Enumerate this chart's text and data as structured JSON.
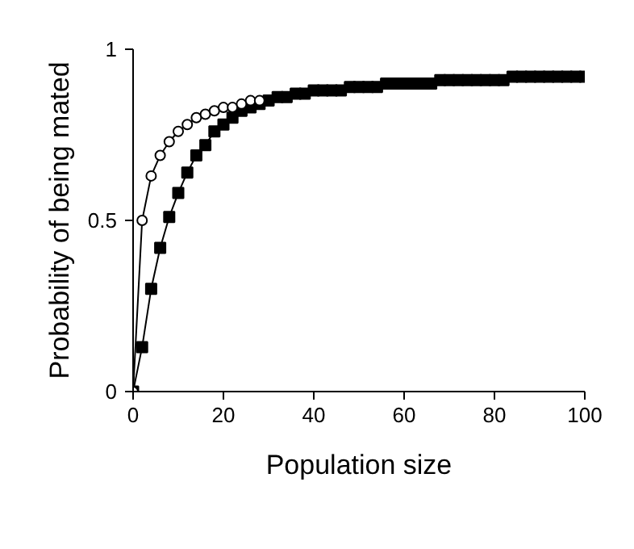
{
  "chart_data": {
    "type": "line",
    "xlabel": "Population size",
    "ylabel": "Probability of being mated",
    "xlim": [
      0,
      100
    ],
    "xticks": [
      0,
      20,
      40,
      60,
      80,
      100
    ],
    "ylim": [
      0,
      1
    ],
    "yticks": [
      0,
      0.5,
      1
    ],
    "grid": false,
    "series": [
      {
        "color": "#000000",
        "marker": "square",
        "x": [
          0,
          2,
          4,
          6,
          8,
          10,
          12,
          14,
          16,
          18,
          20,
          22,
          24,
          26,
          28,
          30,
          32,
          34,
          36,
          38,
          40,
          42,
          44,
          46,
          48,
          50,
          52,
          54,
          56,
          58,
          60,
          62,
          64,
          66,
          68,
          70,
          72,
          74,
          76,
          78,
          80,
          82,
          84,
          86,
          88,
          90,
          92,
          94,
          96,
          98,
          100
        ],
        "values": [
          0,
          0.13,
          0.3,
          0.42,
          0.51,
          0.58,
          0.64,
          0.69,
          0.72,
          0.76,
          0.78,
          0.8,
          0.82,
          0.83,
          0.84,
          0.85,
          0.86,
          0.86,
          0.87,
          0.87,
          0.88,
          0.88,
          0.88,
          0.88,
          0.89,
          0.89,
          0.89,
          0.89,
          0.9,
          0.9,
          0.9,
          0.9,
          0.9,
          0.9,
          0.91,
          0.91,
          0.91,
          0.91,
          0.91,
          0.91,
          0.91,
          0.91,
          0.92,
          0.92,
          0.92,
          0.92,
          0.92,
          0.92,
          0.92,
          0.92,
          0.92
        ]
      },
      {
        "color": "#000000",
        "marker": "circle",
        "x": [
          0,
          2,
          4,
          6,
          8,
          10,
          12,
          14,
          16,
          18,
          20,
          22,
          24,
          26,
          28
        ],
        "values": [
          0,
          0.5,
          0.63,
          0.69,
          0.73,
          0.76,
          0.78,
          0.8,
          0.81,
          0.82,
          0.83,
          0.83,
          0.84,
          0.85,
          0.85
        ]
      }
    ]
  }
}
